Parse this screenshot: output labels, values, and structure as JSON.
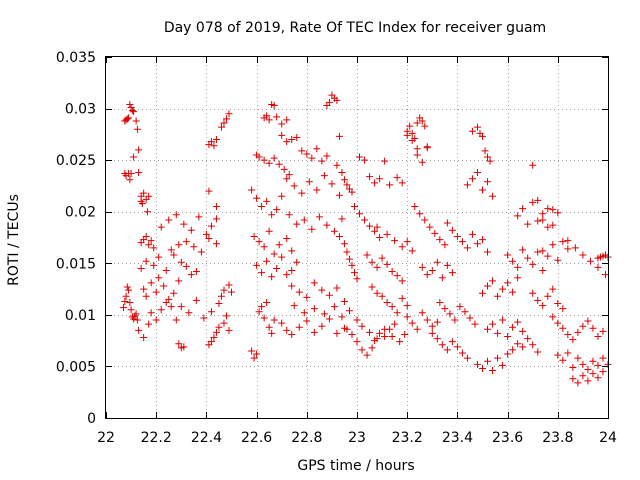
{
  "chart_data": {
    "type": "scatter",
    "title": "Day 078 of 2019, Rate Of TEC Index for receiver guam",
    "xlabel": "GPS time / hours",
    "ylabel": "ROTI / TECUs",
    "xlim": [
      22,
      24
    ],
    "ylim": [
      0,
      0.035
    ],
    "x_ticks": [
      22,
      22.2,
      22.4,
      22.6,
      22.8,
      23,
      23.2,
      23.4,
      23.6,
      23.8,
      24
    ],
    "x_tick_labels": [
      "22",
      "22.2",
      "22.4",
      "22.6",
      "22.8",
      "23",
      "23.2",
      "23.4",
      "23.6",
      "23.8",
      "24"
    ],
    "y_ticks": [
      0,
      0.005,
      0.01,
      0.015,
      0.02,
      0.025,
      0.03,
      0.035
    ],
    "y_tick_labels": [
      "0",
      "0.005",
      "0.01",
      "0.015",
      "0.02",
      "0.025",
      "0.03",
      "0.035"
    ],
    "grid": true,
    "marker": "+",
    "color": "#e00000",
    "series": [
      {
        "name": "ROTI",
        "x": [
          22.075,
          22.08,
          22.085,
          22.09,
          22.095,
          22.1,
          22.105,
          22.11,
          22.12,
          22.125,
          22.13,
          22.075,
          22.08,
          22.09,
          22.095,
          22.1,
          22.11,
          22.13,
          22.14,
          22.07,
          22.075,
          22.08,
          22.085,
          22.09,
          22.095,
          22.1,
          22.105,
          22.11,
          22.115,
          22.12,
          22.125,
          22.14,
          22.145,
          22.15,
          22.16,
          22.165,
          22.17,
          22.14,
          22.15,
          22.16,
          22.17,
          22.18,
          22.19,
          22.13,
          22.15,
          22.17,
          22.18,
          22.2,
          22.22,
          22.24,
          22.26,
          22.28,
          22.15,
          22.16,
          22.18,
          22.2,
          22.21,
          22.23,
          22.25,
          22.27,
          22.29,
          22.14,
          22.16,
          22.19,
          22.21,
          22.24,
          22.27,
          22.3,
          22.32,
          22.34,
          22.36,
          22.22,
          22.25,
          22.28,
          22.31,
          22.34,
          22.37,
          22.4,
          22.42,
          22.44,
          22.26,
          22.29,
          22.32,
          22.35,
          22.38,
          22.41,
          22.44,
          22.3,
          22.33,
          22.36,
          22.39,
          22.42,
          22.45,
          22.48,
          22.29,
          22.3,
          22.31,
          22.41,
          22.42,
          22.43,
          22.44,
          22.45,
          22.47,
          22.49,
          22.41,
          22.42,
          22.43,
          22.44,
          22.46,
          22.47,
          22.48,
          22.49,
          22.41,
          22.44,
          22.46,
          22.47,
          22.49,
          22.5,
          22.58,
          22.59,
          22.6,
          22.61,
          22.62,
          22.63,
          22.64,
          22.65,
          22.66,
          22.67,
          22.63,
          22.64,
          22.65,
          22.66,
          22.67,
          22.68,
          22.7,
          22.72,
          22.6,
          22.61,
          22.63,
          22.65,
          22.67,
          22.69,
          22.71,
          22.73,
          22.58,
          22.6,
          22.62,
          22.64,
          22.66,
          22.68,
          22.7,
          22.59,
          22.61,
          22.63,
          22.65,
          22.67,
          22.69,
          22.72,
          22.74,
          22.6,
          22.62,
          22.64,
          22.66,
          22.68,
          22.7,
          22.72,
          22.74,
          22.76,
          22.7,
          22.72,
          22.74,
          22.76,
          22.78,
          22.8,
          22.82,
          22.84,
          22.86,
          22.88,
          22.72,
          22.75,
          22.78,
          22.81,
          22.84,
          22.87,
          22.9,
          22.93,
          22.73,
          22.76,
          22.79,
          22.82,
          22.85,
          22.88,
          22.91,
          22.94,
          22.74,
          22.77,
          22.8,
          22.83,
          22.86,
          22.89,
          22.92,
          22.95,
          22.7,
          22.72,
          22.74,
          22.77,
          22.8,
          22.83,
          22.86,
          22.89,
          22.92,
          22.95,
          22.75,
          22.79,
          22.83,
          22.87,
          22.91,
          22.94,
          22.97,
          22.88,
          22.89,
          22.9,
          22.91,
          22.92,
          22.93,
          22.92,
          22.94,
          22.95,
          22.96,
          22.97,
          22.98,
          22.93,
          22.95,
          22.96,
          22.97,
          22.98,
          22.99,
          23.0,
          22.96,
          22.98,
          23.0,
          23.02,
          23.04,
          23.06,
          22.99,
          23.01,
          23.03,
          23.05,
          23.07,
          23.09,
          23.01,
          23.03,
          23.05,
          23.07,
          23.09,
          23.11,
          23.13,
          23.04,
          23.06,
          23.08,
          23.1,
          23.12,
          23.14,
          23.16,
          23.18,
          23.0,
          23.02,
          23.05,
          23.08,
          23.11,
          23.14,
          23.06,
          23.08,
          23.1,
          23.12,
          23.14,
          23.16,
          23.18,
          23.2,
          23.07,
          23.09,
          23.11,
          23.13,
          23.15,
          23.17,
          23.19,
          23.08,
          23.12,
          23.15,
          23.18,
          23.2,
          23.22,
          23.16,
          23.18,
          23.2,
          23.22,
          23.24,
          23.26,
          23.28,
          23.2,
          23.21,
          23.22,
          23.23,
          23.24,
          23.24,
          23.25,
          23.26,
          23.27,
          23.28,
          23.2,
          23.22,
          23.24,
          23.26,
          23.28,
          23.3,
          23.32,
          23.23,
          23.25,
          23.27,
          23.29,
          23.31,
          23.33,
          23.35,
          23.26,
          23.28,
          23.3,
          23.32,
          23.34,
          23.36,
          23.38,
          23.3,
          23.32,
          23.34,
          23.36,
          23.38,
          23.4,
          23.42,
          23.44,
          23.33,
          23.35,
          23.37,
          23.39,
          23.41,
          23.43,
          23.45,
          23.47,
          23.36,
          23.38,
          23.4,
          23.42,
          23.44,
          23.46,
          23.48,
          23.5,
          23.52,
          23.44,
          23.46,
          23.48,
          23.5,
          23.52,
          23.54,
          23.46,
          23.48,
          23.49,
          23.5,
          23.51,
          23.52,
          23.53,
          23.48,
          23.5,
          23.52,
          23.54,
          23.56,
          23.58,
          23.6,
          23.5,
          23.52,
          23.54,
          23.56,
          23.58,
          23.6,
          23.62,
          23.64,
          23.52,
          23.54,
          23.56,
          23.58,
          23.6,
          23.62,
          23.64,
          23.66,
          23.6,
          23.62,
          23.64,
          23.66,
          23.68,
          23.7,
          23.72,
          23.74,
          23.64,
          23.66,
          23.68,
          23.7,
          23.72,
          23.74,
          23.76,
          23.78,
          23.62,
          23.64,
          23.66,
          23.68,
          23.7,
          23.72,
          23.7,
          23.72,
          23.74,
          23.76,
          23.78,
          23.8,
          23.7,
          23.72,
          23.74,
          23.76,
          23.78,
          23.8,
          23.82,
          23.74,
          23.76,
          23.78,
          23.8,
          23.82,
          23.84,
          23.78,
          23.8,
          23.82,
          23.84,
          23.86,
          23.88,
          23.9,
          23.92,
          23.94,
          23.96,
          23.98,
          23.8,
          23.82,
          23.84,
          23.86,
          23.88,
          23.9,
          23.92,
          23.94,
          23.96,
          23.98,
          23.86,
          23.88,
          23.9,
          23.92,
          23.94,
          23.96,
          23.98,
          24.0,
          23.84,
          23.87,
          23.9,
          23.93,
          23.96,
          23.99,
          23.96,
          23.97,
          23.98,
          23.99,
          24.0
        ],
        "y": [
          0.0288,
          0.0289,
          0.029,
          0.0291,
          0.0304,
          0.0301,
          0.0298,
          0.0297,
          0.0288,
          0.028,
          0.026,
          0.0237,
          0.0235,
          0.0237,
          0.0231,
          0.0237,
          0.0253,
          0.0238,
          0.0215,
          0.0107,
          0.0113,
          0.0118,
          0.0127,
          0.0124,
          0.0112,
          0.0105,
          0.0098,
          0.0096,
          0.0099,
          0.0101,
          0.0095,
          0.021,
          0.0208,
          0.0218,
          0.0212,
          0.02,
          0.0215,
          0.017,
          0.0173,
          0.0176,
          0.0168,
          0.0172,
          0.0165,
          0.0085,
          0.0078,
          0.0091,
          0.0102,
          0.0095,
          0.0105,
          0.0112,
          0.0108,
          0.0095,
          0.0125,
          0.0118,
          0.0131,
          0.0122,
          0.0136,
          0.0128,
          0.0115,
          0.0121,
          0.0133,
          0.0145,
          0.0152,
          0.0148,
          0.0156,
          0.0143,
          0.0158,
          0.0151,
          0.0147,
          0.0139,
          0.0142,
          0.0185,
          0.0192,
          0.0197,
          0.0188,
          0.0182,
          0.0195,
          0.0178,
          0.0186,
          0.0193,
          0.0163,
          0.0168,
          0.0171,
          0.0166,
          0.0161,
          0.0174,
          0.0169,
          0.0108,
          0.0102,
          0.0114,
          0.0097,
          0.0103,
          0.0111,
          0.0099,
          0.0072,
          0.0068,
          0.0069,
          0.0071,
          0.0074,
          0.0078,
          0.0083,
          0.0088,
          0.0092,
          0.0085,
          0.0265,
          0.0268,
          0.0264,
          0.027,
          0.0282,
          0.0286,
          0.029,
          0.0295,
          0.022,
          0.0205,
          0.0118,
          0.0124,
          0.0129,
          0.0122,
          0.0065,
          0.0058,
          0.0062,
          0.0103,
          0.0108,
          0.0097,
          0.0112,
          0.0088,
          0.0082,
          0.0095,
          0.0291,
          0.0293,
          0.0289,
          0.0304,
          0.0303,
          0.0292,
          0.0285,
          0.0289,
          0.0255,
          0.0253,
          0.025,
          0.0247,
          0.0252,
          0.0246,
          0.0241,
          0.0236,
          0.0221,
          0.0213,
          0.0205,
          0.021,
          0.0197,
          0.0202,
          0.0215,
          0.0176,
          0.0171,
          0.0166,
          0.0181,
          0.0159,
          0.0168,
          0.0174,
          0.0162,
          0.0148,
          0.0141,
          0.0152,
          0.0137,
          0.0145,
          0.0156,
          0.0139,
          0.0143,
          0.0151,
          0.0274,
          0.0268,
          0.027,
          0.0272,
          0.0259,
          0.0256,
          0.0252,
          0.0261,
          0.0249,
          0.0254,
          0.0232,
          0.0225,
          0.0218,
          0.0229,
          0.0221,
          0.0235,
          0.0227,
          0.0216,
          0.0197,
          0.0188,
          0.0192,
          0.0183,
          0.0195,
          0.0187,
          0.0181,
          0.0193,
          0.0128,
          0.0122,
          0.0117,
          0.0131,
          0.0124,
          0.0119,
          0.0126,
          0.0113,
          0.0092,
          0.0085,
          0.0081,
          0.0088,
          0.0094,
          0.0083,
          0.0089,
          0.0096,
          0.0082,
          0.0087,
          0.0109,
          0.0102,
          0.0106,
          0.0101,
          0.0108,
          0.0098,
          0.0104,
          0.0303,
          0.0306,
          0.0313,
          0.031,
          0.0308,
          0.0273,
          0.0245,
          0.0238,
          0.0231,
          0.0226,
          0.0222,
          0.0219,
          0.0176,
          0.0169,
          0.0161,
          0.0154,
          0.0148,
          0.0141,
          0.0135,
          0.0086,
          0.0081,
          0.0074,
          0.0066,
          0.0061,
          0.0068,
          0.0205,
          0.0198,
          0.0192,
          0.0186,
          0.0181,
          0.0175,
          0.0253,
          0.025,
          0.0234,
          0.0228,
          0.0232,
          0.0249,
          0.0226,
          0.0158,
          0.0151,
          0.0146,
          0.0155,
          0.0149,
          0.0142,
          0.0138,
          0.0133,
          0.0095,
          0.0089,
          0.0083,
          0.0077,
          0.0086,
          0.0079,
          0.0127,
          0.0121,
          0.0118,
          0.0112,
          0.0108,
          0.0102,
          0.0116,
          0.0109,
          0.0075,
          0.0082,
          0.0079,
          0.0086,
          0.0091,
          0.0074,
          0.0081,
          0.0185,
          0.0178,
          0.0172,
          0.0166,
          0.0171,
          0.0162,
          0.0233,
          0.0228,
          0.0274,
          0.0269,
          0.0255,
          0.0248,
          0.0263,
          0.0278,
          0.0283,
          0.0276,
          0.0271,
          0.0261,
          0.0286,
          0.0291,
          0.0288,
          0.0283,
          0.0262,
          0.0098,
          0.0092,
          0.0086,
          0.0102,
          0.0095,
          0.0089,
          0.0093,
          0.0205,
          0.0198,
          0.0192,
          0.0185,
          0.0179,
          0.0173,
          0.0168,
          0.0146,
          0.0139,
          0.0143,
          0.0151,
          0.0136,
          0.0148,
          0.0141,
          0.0082,
          0.0077,
          0.0071,
          0.0066,
          0.0074,
          0.0069,
          0.0063,
          0.0058,
          0.0112,
          0.0106,
          0.0101,
          0.0095,
          0.0108,
          0.0103,
          0.0097,
          0.0091,
          0.0189,
          0.0182,
          0.0176,
          0.0171,
          0.0165,
          0.0178,
          0.0169,
          0.0173,
          0.0161,
          0.0226,
          0.0232,
          0.0238,
          0.0221,
          0.0229,
          0.0215,
          0.0278,
          0.0282,
          0.0276,
          0.0273,
          0.0259,
          0.0253,
          0.0249,
          0.0052,
          0.0048,
          0.0055,
          0.0046,
          0.0058,
          0.0051,
          0.0062,
          0.0121,
          0.0128,
          0.0133,
          0.0118,
          0.0125,
          0.0131,
          0.0122,
          0.0136,
          0.0086,
          0.0091,
          0.0082,
          0.0095,
          0.0079,
          0.0088,
          0.0093,
          0.0084,
          0.0158,
          0.0152,
          0.0146,
          0.0163,
          0.0155,
          0.0149,
          0.0161,
          0.0143,
          0.0196,
          0.0203,
          0.0188,
          0.0209,
          0.0191,
          0.0198,
          0.0185,
          0.0202,
          0.0066,
          0.0072,
          0.0069,
          0.0077,
          0.0071,
          0.0064,
          0.0245,
          0.0211,
          0.0192,
          0.0203,
          0.0187,
          0.0199,
          0.0121,
          0.0114,
          0.0109,
          0.0118,
          0.0125,
          0.0111,
          0.0106,
          0.0162,
          0.0157,
          0.0168,
          0.0153,
          0.0171,
          0.0164,
          0.0098,
          0.0092,
          0.0087,
          0.0081,
          0.0076,
          0.0083,
          0.0089,
          0.0094,
          0.0087,
          0.0079,
          0.0084,
          0.0061,
          0.0056,
          0.0063,
          0.0049,
          0.0058,
          0.0052,
          0.0047,
          0.0055,
          0.0051,
          0.0058,
          0.0038,
          0.0034,
          0.0041,
          0.0036,
          0.0043,
          0.0039,
          0.0045,
          0.0052,
          0.0172,
          0.0165,
          0.0158,
          0.0152,
          0.0146,
          0.0139,
          0.0155,
          0.0156,
          0.0157,
          0.0158,
          0.0156
        ]
      }
    ]
  }
}
